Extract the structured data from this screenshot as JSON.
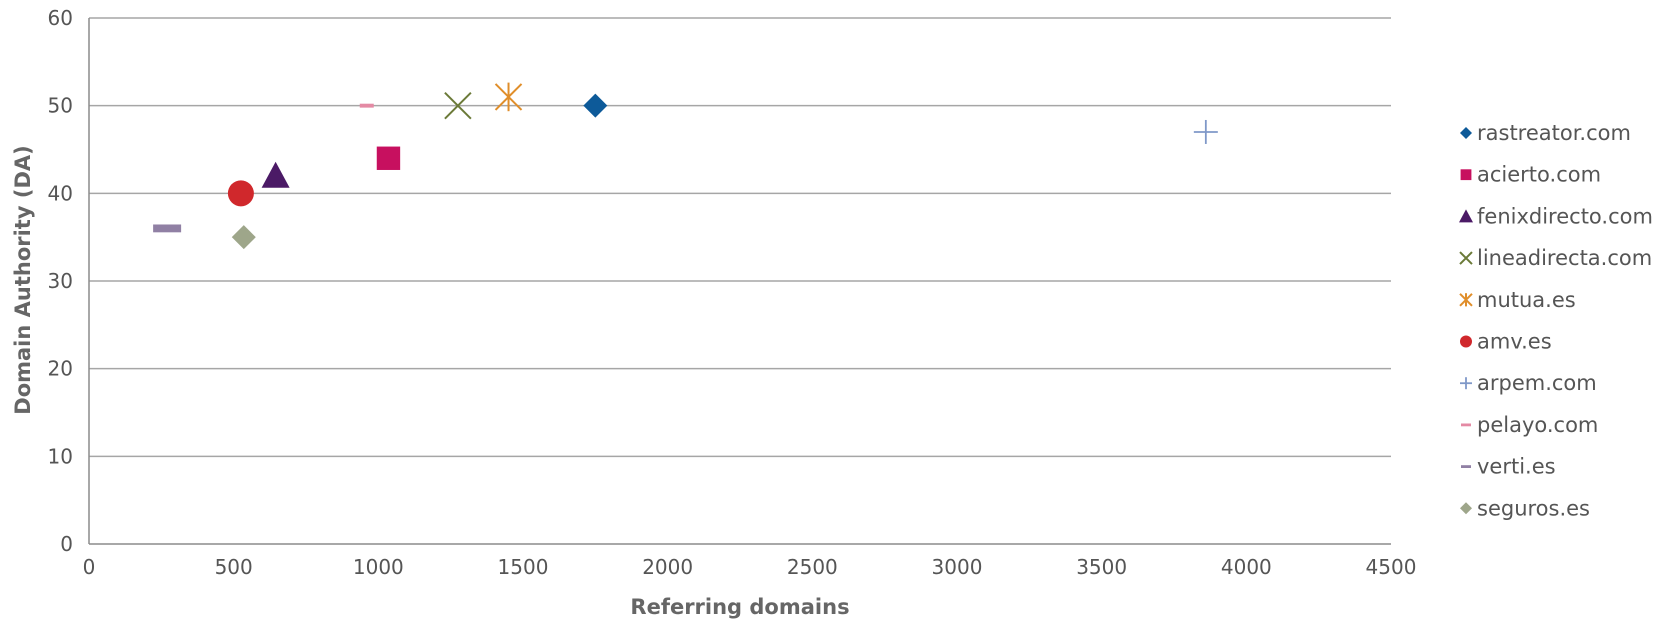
{
  "chart_data": {
    "type": "scatter",
    "title": "",
    "xlabel": "Referring domains",
    "ylabel": "Domain Authority (DA)",
    "xlim": [
      0,
      4500
    ],
    "ylim": [
      0,
      60
    ],
    "x_ticks": [
      0,
      500,
      1000,
      1500,
      2000,
      2500,
      3000,
      3500,
      4000,
      4500
    ],
    "y_ticks": [
      0,
      10,
      20,
      30,
      40,
      50,
      60
    ],
    "grid": "horizontal",
    "legend_position": "right",
    "series": [
      {
        "name": "rastreator.com",
        "marker": "diamond",
        "color": "#0d5a99",
        "points": [
          {
            "x": 1750,
            "y": 50
          }
        ]
      },
      {
        "name": "acierto.com",
        "marker": "square",
        "color": "#c7105f",
        "points": [
          {
            "x": 1035,
            "y": 44
          }
        ]
      },
      {
        "name": "fenixdirecto.com",
        "marker": "triangle",
        "color": "#4b1a66",
        "points": [
          {
            "x": 645,
            "y": 42
          }
        ]
      },
      {
        "name": "lineadirecta.com",
        "marker": "x",
        "color": "#6b7a38",
        "points": [
          {
            "x": 1275,
            "y": 50
          }
        ]
      },
      {
        "name": "mutua.es",
        "marker": "star",
        "color": "#e08e2a",
        "points": [
          {
            "x": 1450,
            "y": 51
          }
        ]
      },
      {
        "name": "amv.es",
        "marker": "circle",
        "color": "#d0282c",
        "points": [
          {
            "x": 525,
            "y": 40
          }
        ]
      },
      {
        "name": "arpem.com",
        "marker": "plus",
        "color": "#7f98c8",
        "points": [
          {
            "x": 3860,
            "y": 47
          }
        ]
      },
      {
        "name": "pelayo.com",
        "marker": "dash",
        "color": "#e48aa4",
        "points": [
          {
            "x": 960,
            "y": 50
          }
        ]
      },
      {
        "name": "verti.es",
        "marker": "dash",
        "color": "#9080a4",
        "points": [
          {
            "x": 270,
            "y": 36
          }
        ]
      },
      {
        "name": "seguros.es",
        "marker": "diamond",
        "color": "#9ea68a",
        "points": [
          {
            "x": 535,
            "y": 35
          }
        ]
      }
    ]
  }
}
